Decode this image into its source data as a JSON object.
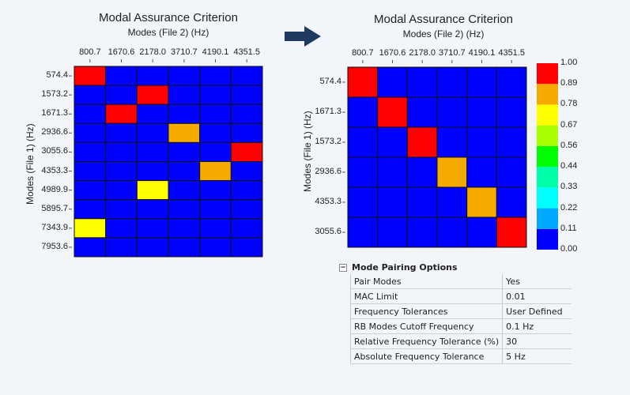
{
  "chart_data": [
    {
      "type": "heatmap",
      "title": "Modal Assurance Criterion",
      "xlabel": "Modes (File 2) (Hz)",
      "ylabel": "Modes (File 1) (Hz)",
      "x": [
        "800.7",
        "1670.6",
        "2178.0",
        "3710.7",
        "4190.1",
        "4351.5"
      ],
      "y": [
        "574.4",
        "1573.2",
        "1671.3",
        "2936.6",
        "3055.6",
        "4353.3",
        "4989.9",
        "5895.7",
        "7343.9",
        "7953.6"
      ],
      "values": [
        [
          0.95,
          0,
          0,
          0,
          0,
          0
        ],
        [
          0,
          0,
          0.95,
          0,
          0,
          0
        ],
        [
          0,
          0.95,
          0,
          0,
          0,
          0
        ],
        [
          0,
          0,
          0,
          0.83,
          0,
          0
        ],
        [
          0,
          0,
          0,
          0,
          0,
          0.95
        ],
        [
          0,
          0,
          0,
          0,
          0.83,
          0
        ],
        [
          0,
          0,
          0.72,
          0,
          0,
          0
        ],
        [
          0,
          0,
          0,
          0,
          0,
          0
        ],
        [
          0.72,
          0,
          0,
          0,
          0,
          0
        ],
        [
          0,
          0,
          0,
          0,
          0,
          0
        ]
      ]
    },
    {
      "type": "heatmap",
      "title": "Modal Assurance Criterion",
      "xlabel": "Modes (File 2) (Hz)",
      "ylabel": "Modes (File 1) (Hz)",
      "x": [
        "800.7",
        "1670.6",
        "2178.0",
        "3710.7",
        "4190.1",
        "4351.5"
      ],
      "y": [
        "574.4",
        "1671.3",
        "1573.2",
        "2936.6",
        "4353.3",
        "3055.6"
      ],
      "values": [
        [
          0.95,
          0,
          0,
          0,
          0,
          0
        ],
        [
          0,
          0.95,
          0,
          0,
          0,
          0
        ],
        [
          0,
          0,
          0.95,
          0,
          0,
          0
        ],
        [
          0,
          0,
          0,
          0.83,
          0,
          0
        ],
        [
          0,
          0,
          0,
          0,
          0.83,
          0
        ],
        [
          0,
          0,
          0,
          0,
          0,
          0.95
        ]
      ],
      "colorbar": {
        "ticks": [
          "0.00",
          "0.11",
          "0.22",
          "0.33",
          "0.44",
          "0.56",
          "0.67",
          "0.78",
          "0.89",
          "1.00"
        ],
        "colors": [
          "#0000ff",
          "#00aaff",
          "#00ffff",
          "#00ffaa",
          "#00ff00",
          "#aaff00",
          "#ffff00",
          "#f5aa00",
          "#ff0000"
        ]
      }
    }
  ],
  "arrow_color": "#1f3a5f",
  "options": {
    "title": "Mode Pairing Options",
    "collapse_icon": "minus-box-icon",
    "rows": [
      {
        "name": "Pair Modes",
        "value": "Yes"
      },
      {
        "name": "MAC Limit",
        "value": "0.01"
      },
      {
        "name": "Frequency Tolerances",
        "value": "User Defined"
      },
      {
        "name": "RB Modes Cutoff Frequency",
        "value": "0.1 Hz"
      },
      {
        "name": "Relative Frequency Tolerance (%)",
        "value": "30"
      },
      {
        "name": "Absolute Frequency Tolerance",
        "value": "5 Hz"
      }
    ]
  }
}
